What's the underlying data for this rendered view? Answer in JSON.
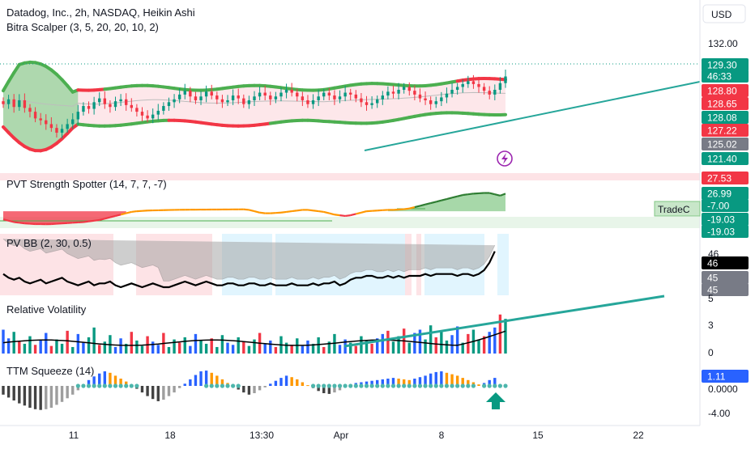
{
  "header": {
    "title": "Datadog, Inc., 2h, NASDAQ, Heikin Ashi",
    "indicator": "Bitra Scalper (3, 5, 20, 20, 10, 2)",
    "currency": "USD"
  },
  "price_axis": {
    "ticks": [
      "132.00",
      "125.02",
      "121.40"
    ],
    "tags": [
      {
        "label": "129.30",
        "color": "#089981"
      },
      {
        "label": "46:33",
        "color": "#089981"
      },
      {
        "label": "128.80",
        "color": "#f23645"
      },
      {
        "label": "128.65",
        "color": "#f23645"
      },
      {
        "label": "128.08",
        "color": "#089981"
      },
      {
        "label": "127.22",
        "color": "#f23645"
      },
      {
        "label": "125.02",
        "color": "#787b86"
      },
      {
        "label": "121.40",
        "color": "#089981"
      }
    ]
  },
  "pvt": {
    "title": "PVT Strength Spotter (14, 7, 7, -7)",
    "tags": [
      {
        "label": "27.53",
        "color": "#f23645"
      },
      {
        "label": "26.99",
        "color": "#089981"
      },
      {
        "label": "-7.00",
        "color": "#089981"
      },
      {
        "label": "-19.03",
        "color": "#089981"
      },
      {
        "label": "-19.03",
        "color": "#089981"
      }
    ],
    "watermark": "TradeC"
  },
  "pvbb": {
    "title": "PV BB (2, 30, 0.5)",
    "ticks": [
      "46"
    ],
    "tags": [
      {
        "label": "46",
        "color": "#000000"
      },
      {
        "label": "45",
        "color": "#787b86"
      },
      {
        "label": "45",
        "color": "#787b86"
      }
    ]
  },
  "rv": {
    "title": "Relative Volatility",
    "ticks": [
      "5",
      "3",
      "0"
    ]
  },
  "ttm": {
    "title": "TTM Squeeze (14)",
    "ticks": [
      "0.0000",
      "-4.00"
    ],
    "tags": [
      {
        "label": "1.11",
        "color": "#2962ff"
      }
    ]
  },
  "xaxis": {
    "labels": [
      "11",
      "18",
      "13:30",
      "Apr",
      "8",
      "15",
      "22"
    ]
  },
  "colors": {
    "up": "#089981",
    "down": "#f23645",
    "band_up": "#4caf50",
    "band_down": "#f23645",
    "trend": "#26a69a",
    "squeeze_dot": "#4db6ac",
    "blue": "#2962ff",
    "orange": "#ff9800",
    "gray": "#9e9e9e"
  },
  "chart_data": [
    {
      "type": "candlestick",
      "title": "Datadog, Inc., 2h, NASDAQ, Heikin Ashi",
      "x_range": [
        "Mar 4",
        "Apr 11"
      ],
      "ylim": [
        119.5,
        133.5
      ],
      "close": [
        126.4,
        126.9,
        126.1,
        126.8,
        126.0,
        125.6,
        124.9,
        124.7,
        124.3,
        123.9,
        123.4,
        123.8,
        124.3,
        124.8,
        125.6,
        126.2,
        125.9,
        126.6,
        127.0,
        126.4,
        126.1,
        126.7,
        126.9,
        126.3,
        126.0,
        125.6,
        125.2,
        124.9,
        125.3,
        125.7,
        126.2,
        126.6,
        126.9,
        127.4,
        127.8,
        127.2,
        126.8,
        127.2,
        127.7,
        127.3,
        126.9,
        126.6,
        126.8,
        127.3,
        127.0,
        126.4,
        126.8,
        127.2,
        127.6,
        127.3,
        126.9,
        127.2,
        127.6,
        127.9,
        127.6,
        127.2,
        126.8,
        126.4,
        126.8,
        127.2,
        127.6,
        127.3,
        126.9,
        127.2,
        127.6,
        127.4,
        127.0,
        126.6,
        126.3,
        126.5,
        126.9,
        127.3,
        127.7,
        127.5,
        127.9,
        128.2,
        127.8,
        127.4,
        127.0,
        126.8,
        126.4,
        126.7,
        127.1,
        127.5,
        127.9,
        128.2,
        128.5,
        128.8,
        128.5,
        128.2,
        127.8,
        127.4,
        127.9,
        128.6,
        129.3
      ]
    },
    {
      "type": "line",
      "title": "PVT Strength Spotter (14, 7, 7, -7)",
      "ylim": [
        -25,
        30
      ],
      "values": [
        -12,
        -14,
        -16,
        -17,
        -18,
        -18.5,
        -19,
        -19,
        -19.2,
        -19,
        -18.5,
        -18,
        -17.5,
        -17,
        -16.5,
        -16,
        -15,
        -14,
        -13,
        -11,
        -9,
        -7,
        -5,
        -3,
        -1,
        0,
        0.5,
        1,
        1.2,
        1.4,
        1.6,
        1.8,
        2,
        2.1,
        2.2,
        2.3,
        2.3,
        2.4,
        2.4,
        2.5,
        2.5,
        2.6,
        2.6,
        2.7,
        2.7,
        2.8,
        2,
        0,
        -2,
        -3,
        -3,
        -2.5,
        -2,
        -1,
        0,
        1,
        2,
        2,
        1,
        0,
        -1,
        -3,
        -5,
        -6,
        -7,
        -6,
        -4,
        -2,
        0,
        0.5,
        1,
        1.5,
        2,
        2,
        2.5,
        3,
        4,
        6,
        8,
        10,
        12,
        14,
        16,
        18,
        20,
        22,
        24,
        25,
        26,
        26.5,
        27,
        27,
        25,
        23,
        26
      ]
    },
    {
      "type": "line",
      "title": "PV BB (2, 30, 0.5)",
      "ylim": [
        44,
        47
      ],
      "values": [
        45.0,
        44.8,
        44.7,
        44.8,
        44.6,
        44.5,
        44.6,
        44.7,
        44.5,
        44.6,
        44.7,
        44.8,
        44.6,
        44.5,
        44.4,
        44.5,
        44.6,
        44.4,
        44.5,
        44.5,
        44.6,
        44.4,
        44.3,
        44.4,
        44.5,
        44.4,
        44.3,
        44.4,
        44.5,
        44.4,
        44.3,
        44.3,
        44.4,
        44.5,
        44.6,
        44.5,
        44.4,
        44.5,
        44.6,
        44.5,
        44.4,
        44.4,
        44.5,
        44.5,
        44.4,
        44.4,
        44.5,
        44.5,
        44.4,
        44.4,
        44.5,
        44.4,
        44.4,
        44.4,
        44.5,
        44.4,
        44.4,
        44.4,
        44.5,
        44.4,
        44.5,
        44.5,
        44.6,
        44.4,
        44.5,
        44.7,
        44.8,
        44.8,
        44.9,
        44.9,
        44.8,
        44.8,
        44.9,
        44.8,
        44.9,
        44.8,
        44.9,
        44.9,
        44.9,
        45.0,
        44.9,
        45.0,
        45.0,
        45.0,
        45.0,
        44.9,
        45.0,
        45.0,
        44.9,
        45.0,
        45.2,
        45.6,
        46.2
      ]
    },
    {
      "type": "bar",
      "title": "Relative Volatility",
      "ylim": [
        0,
        5
      ],
      "values": [
        2.2,
        1.4,
        2.0,
        1.1,
        0.9,
        1.6,
        0.8,
        1.2,
        1.9,
        0.7,
        1.3,
        0.9,
        2.1,
        0.6,
        1.8,
        1.0,
        1.5,
        2.4,
        0.8,
        1.1,
        1.7,
        0.6,
        1.4,
        0.9,
        2.0,
        1.2,
        0.7,
        1.6,
        1.1,
        0.8,
        1.9,
        0.6,
        1.3,
        1.0,
        1.5,
        0.7,
        1.8,
        1.2,
        0.9,
        1.4,
        0.6,
        1.7,
        1.0,
        0.8,
        1.5,
        1.1,
        0.7,
        1.3,
        1.9,
        0.9,
        1.2,
        0.6,
        1.6,
        1.0,
        0.8,
        1.4,
        0.7,
        1.2,
        0.9,
        1.5,
        0.6,
        1.1,
        1.8,
        0.8,
        1.3,
        1.0,
        0.7,
        1.6,
        1.2,
        0.9,
        1.4,
        1.8,
        2.1,
        1.1,
        1.6,
        2.3,
        1.0,
        1.9,
        2.2,
        1.3,
        2.6,
        1.5,
        2.0,
        1.2,
        1.7,
        2.5,
        1.0,
        1.8,
        2.2,
        1.3,
        1.6,
        2.0,
        2.4,
        3.6,
        3.2
      ]
    },
    {
      "type": "bar",
      "title": "TTM Squeeze (14)",
      "ylim": [
        -5,
        3
      ],
      "values": [
        -1.2,
        -1.6,
        -2.0,
        -2.4,
        -2.7,
        -3.0,
        -3.2,
        -3.3,
        -3.2,
        -3.0,
        -2.6,
        -2.2,
        -1.7,
        -1.2,
        -0.6,
        0.2,
        0.8,
        1.3,
        1.7,
        2.0,
        1.8,
        1.4,
        1.0,
        0.6,
        0.2,
        -0.4,
        -0.9,
        -1.4,
        -1.8,
        -2.1,
        -1.9,
        -1.4,
        -0.9,
        -0.3,
        0.3,
        0.9,
        1.5,
        2.0,
        2.1,
        1.8,
        1.4,
        0.9,
        0.4,
        -0.1,
        -0.5,
        -0.9,
        -1.2,
        -1.0,
        -0.6,
        -0.2,
        0.3,
        0.7,
        1.1,
        1.4,
        1.2,
        0.9,
        0.5,
        0.1,
        -0.3,
        -0.7,
        -1.0,
        -1.1,
        -0.9,
        -0.6,
        -0.2,
        0.2,
        0.4,
        0.5,
        0.6,
        0.7,
        0.8,
        0.9,
        1.0,
        1.1,
        1.0,
        0.9,
        0.8,
        1.0,
        1.2,
        1.4,
        1.7,
        1.9,
        2.0,
        1.8,
        1.6,
        1.4,
        1.1,
        0.8,
        0.5,
        0.2,
        0.4,
        0.8,
        1.1
      ]
    }
  ]
}
